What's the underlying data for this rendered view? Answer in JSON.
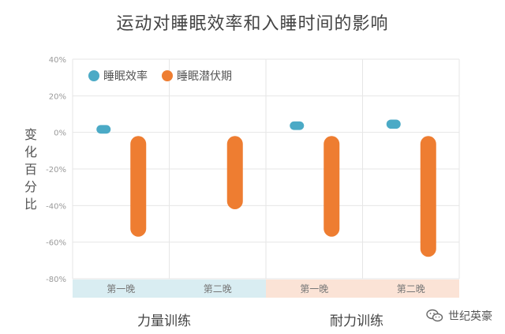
{
  "colors": {
    "efficiency": "#4BAAC6",
    "latency": "#EE7D31",
    "band_strength": "#D9EDF2",
    "band_endurance": "#FBE3D6",
    "grid": "#E6E6E6"
  },
  "chart_data": {
    "type": "range-bar",
    "title": "运动对睡眠效率和入睡时间的影响",
    "ylabel": "变化百分比",
    "ylim": [
      -80,
      40
    ],
    "yticks": [
      40,
      20,
      0,
      -20,
      -40,
      -60,
      -80
    ],
    "ytick_labels": [
      "40%",
      "20%",
      "0%",
      "-20%",
      "-40%",
      "-60%",
      "-80%"
    ],
    "legend": [
      "睡眠效率",
      "睡眠潜伏期"
    ],
    "legend_position": "top-left",
    "groups": [
      {
        "label": "力量训练",
        "categories": [
          "第一晚",
          "第二晚"
        ]
      },
      {
        "label": "耐力训练",
        "categories": [
          "第一晚",
          "第二晚"
        ]
      }
    ],
    "categories": [
      "第一晚",
      "第二晚",
      "第一晚",
      "第二晚"
    ],
    "series": [
      {
        "name": "睡眠效率",
        "ranges": [
          [
            2,
            4
          ],
          null,
          [
            2,
            6
          ],
          [
            2,
            7
          ]
        ]
      },
      {
        "name": "睡眠潜伏期",
        "ranges": [
          [
            -57,
            -2
          ],
          [
            -42,
            -2
          ],
          [
            -57,
            -2
          ],
          [
            -68,
            -2
          ]
        ]
      }
    ]
  },
  "watermark": {
    "text": "世纪英豪"
  }
}
